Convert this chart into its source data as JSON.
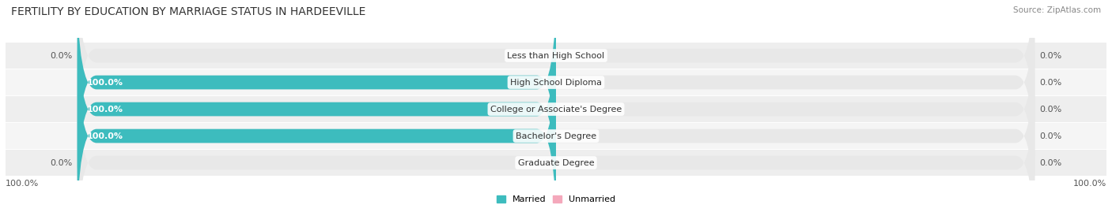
{
  "title": "FERTILITY BY EDUCATION BY MARRIAGE STATUS IN HARDEEVILLE",
  "source": "Source: ZipAtlas.com",
  "categories": [
    "Graduate Degree",
    "Bachelor's Degree",
    "College or Associate's Degree",
    "High School Diploma",
    "Less than High School"
  ],
  "married_pct": [
    0.0,
    100.0,
    100.0,
    100.0,
    0.0
  ],
  "unmarried_pct": [
    0.0,
    0.0,
    0.0,
    0.0,
    0.0
  ],
  "married_color": "#3dbcbe",
  "unmarried_color": "#f4a8bb",
  "bar_bg_color": "#e8e8e8",
  "title_fontsize": 10,
  "label_fontsize": 8,
  "bar_height": 0.52,
  "legend_married": "Married",
  "legend_unmarried": "Unmarried",
  "axis_label_left": "100.0%",
  "axis_label_right": "100.0%"
}
